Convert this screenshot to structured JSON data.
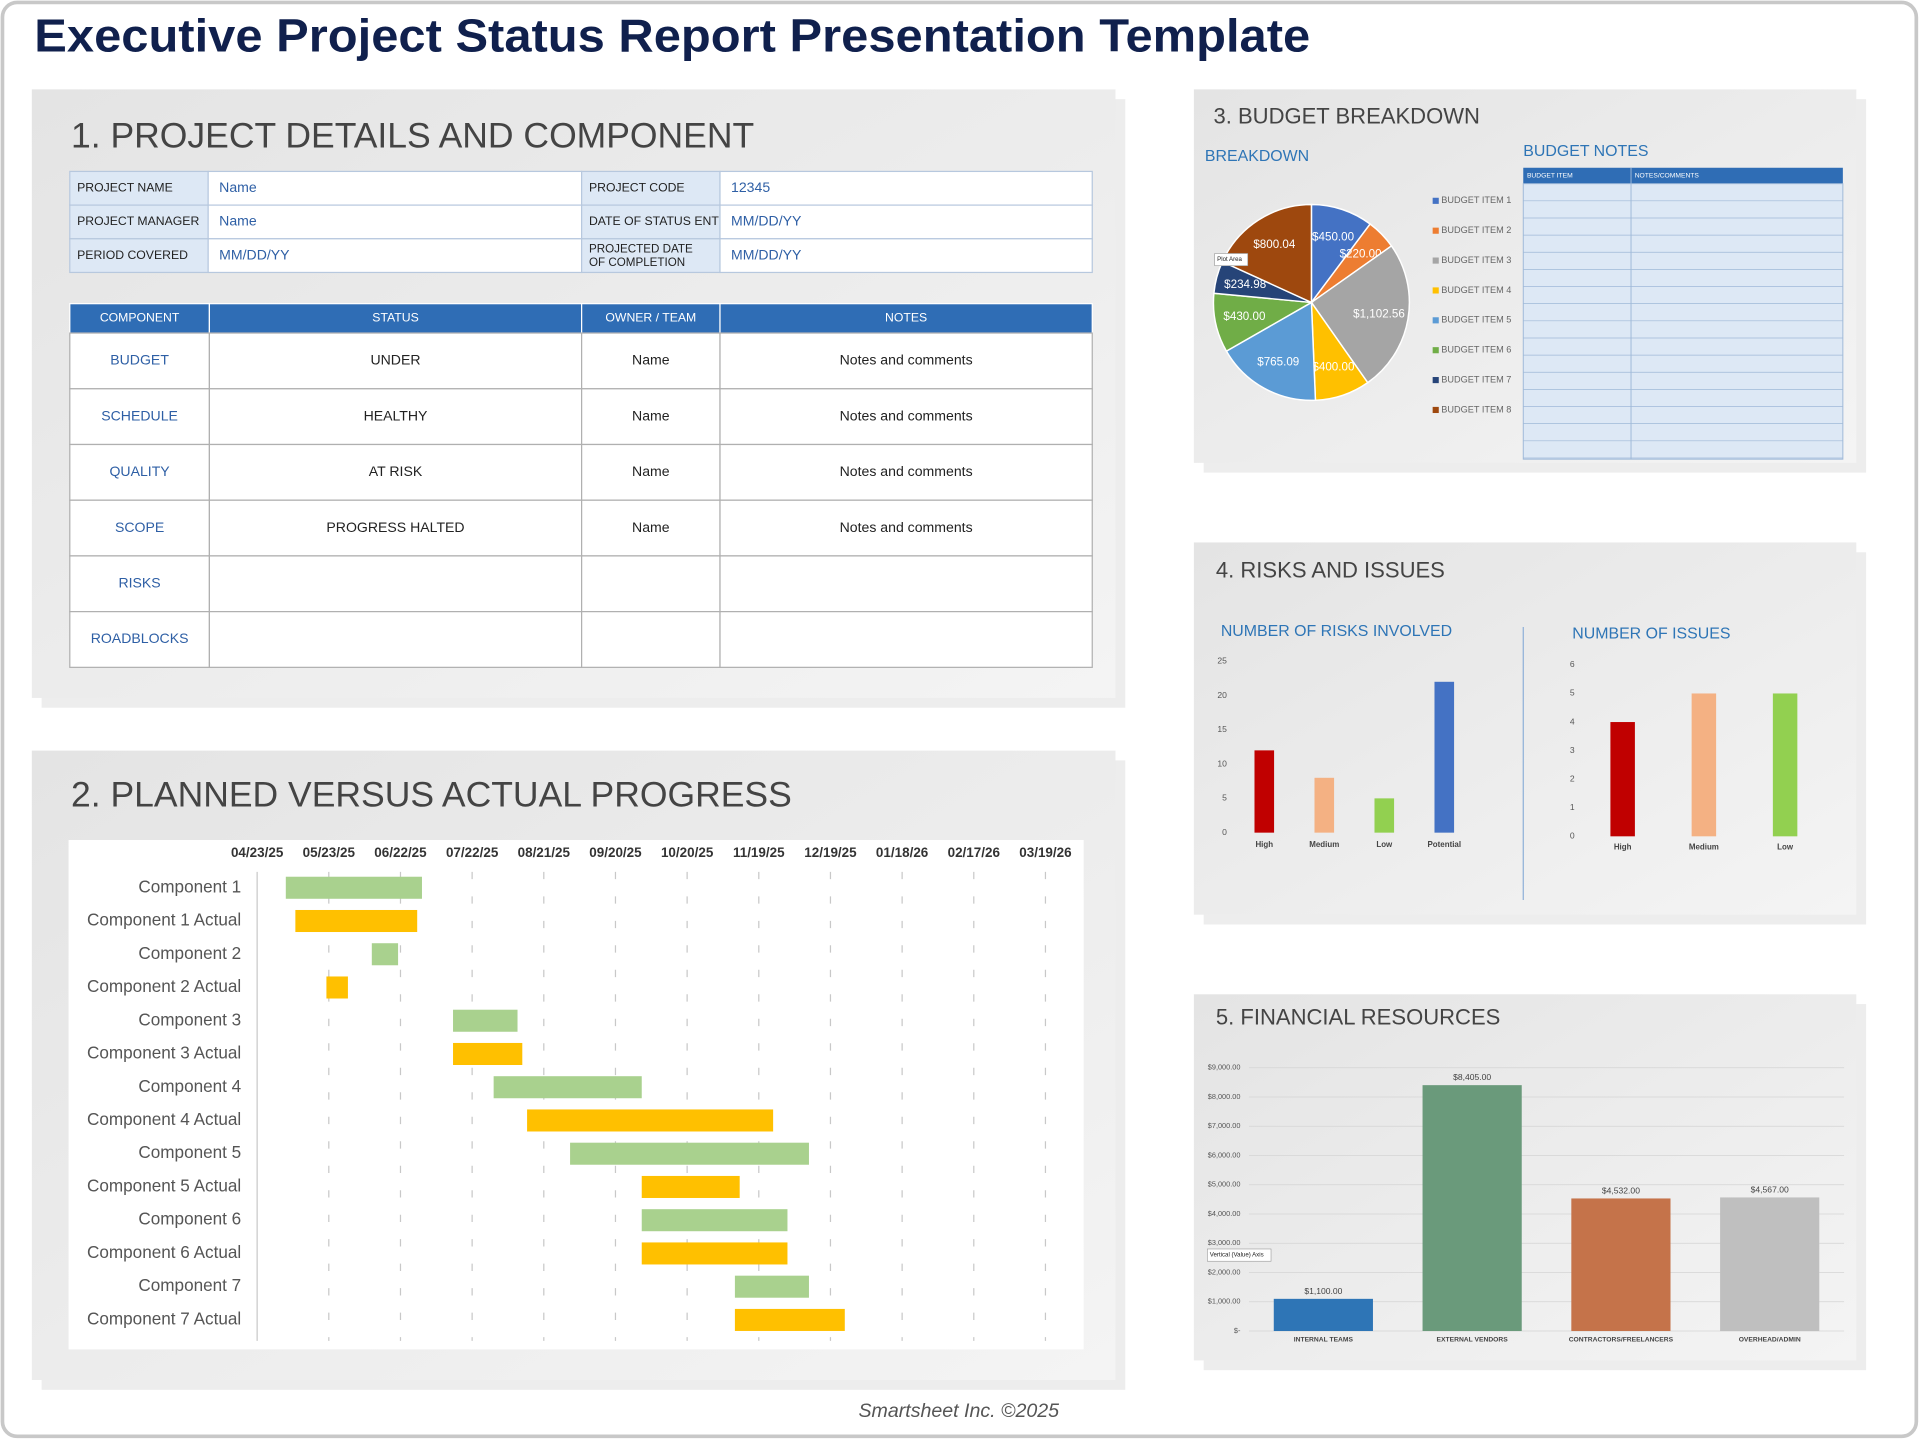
{
  "title": "Executive Project Status Report Presentation Template",
  "footer": "Smartsheet Inc. ©2025",
  "project": {
    "heading": "1. PROJECT DETAILS AND COMPONENT",
    "details": [
      [
        "PROJECT NAME",
        "Name",
        "PROJECT CODE",
        "12345"
      ],
      [
        "PROJECT MANAGER",
        "Name",
        "DATE OF STATUS ENTRY",
        "MM/DD/YY"
      ],
      [
        "PERIOD COVERED",
        "MM/DD/YY",
        "PROJECTED DATE OF COMPLETION",
        "MM/DD/YY"
      ]
    ],
    "components": {
      "header": [
        "COMPONENT",
        "STATUS",
        "OWNER / TEAM",
        "NOTES"
      ],
      "rows": [
        [
          "BUDGET",
          "UNDER",
          "Name",
          "Notes and comments"
        ],
        [
          "SCHEDULE",
          "HEALTHY",
          "Name",
          "Notes and comments"
        ],
        [
          "QUALITY",
          "AT RISK",
          "Name",
          "Notes and comments"
        ],
        [
          "SCOPE",
          "PROGRESS HALTED",
          "Name",
          "Notes and comments"
        ],
        [
          "RISKS"
        ],
        [
          "ROADBLOCKS"
        ]
      ]
    }
  },
  "budget_heading": "3. BUDGET BREAKDOWN",
  "budget_notes": {
    "title": "BUDGET NOTES",
    "header": [
      "BUDGET ITEM",
      "NOTES/COMMENTS"
    ]
  },
  "risks_heading": "4. RISKS AND ISSUES",
  "chart_data": [
    {
      "type": "gantt",
      "title": "2. PLANNED VERSUS ACTUAL PROGRESS",
      "categories": [
        "Component 1",
        "Component 1 Actual",
        "Component 2",
        "Component 2 Actual",
        "Component 3",
        "Component 3 Actual",
        "Component 4",
        "Component 4 Actual",
        "Component 5",
        "Component 5 Actual",
        "Component 6",
        "Component 6 Actual",
        "Component 7",
        "Component 7 Actual"
      ],
      "starts": [
        "2025-05-05",
        "2025-05-09",
        "2025-06-10",
        "2025-05-22",
        "2025-07-14",
        "2025-07-14",
        "2025-07-31",
        "2025-08-14",
        "2025-09-01",
        "2025-10-01",
        "2025-10-01",
        "2025-10-01",
        "2025-11-09",
        "2025-11-09"
      ],
      "ends": [
        "2025-07-01",
        "2025-06-29",
        "2025-06-21",
        "2025-05-31",
        "2025-08-10",
        "2025-08-12",
        "2025-10-01",
        "2025-11-25",
        "2025-12-10",
        "2025-11-11",
        "2025-12-01",
        "2025-12-01",
        "2025-12-10",
        "2025-12-25"
      ],
      "bar_colors": [
        "#a9d18e",
        "#ffc000"
      ],
      "xlim": [
        "2025-04-23",
        "2026-04-04"
      ],
      "xticks": [
        {
          "value": "2025-04-23",
          "label": "04/23/25"
        },
        {
          "value": "2025-05-23",
          "label": "05/23/25"
        },
        {
          "value": "2025-06-22",
          "label": "06/22/25"
        },
        {
          "value": "2025-07-22",
          "label": "07/22/25"
        },
        {
          "value": "2025-08-21",
          "label": "08/21/25"
        },
        {
          "value": "2025-09-20",
          "label": "09/20/25"
        },
        {
          "value": "2025-10-20",
          "label": "10/20/25"
        },
        {
          "value": "2025-11-19",
          "label": "11/19/25"
        },
        {
          "value": "2025-12-19",
          "label": "12/19/25"
        },
        {
          "value": "2026-01-18",
          "label": "01/18/26"
        },
        {
          "value": "2026-02-17",
          "label": "02/17/26"
        },
        {
          "value": "2026-03-19",
          "label": "03/19/26"
        }
      ],
      "grid": true
    },
    {
      "type": "pie",
      "title": "BREAKDOWN",
      "categories": [
        "BUDGET ITEM 1",
        "BUDGET ITEM 2",
        "BUDGET ITEM 3",
        "BUDGET ITEM 4",
        "BUDGET ITEM 5",
        "BUDGET ITEM 6",
        "BUDGET ITEM 7",
        "BUDGET ITEM 8"
      ],
      "values": [
        450.0,
        220.0,
        1102.56,
        400.0,
        765.09,
        430.0,
        234.98,
        800.04
      ],
      "value_labels": [
        "$450.00",
        "$220.00",
        "$1,102.56",
        "$400.00",
        "$765.09",
        "$430.00",
        "$234.98",
        "$800.04"
      ],
      "colors": [
        "#4472c4",
        "#ed7d31",
        "#a5a5a5",
        "#ffc000",
        "#5b9bd5",
        "#70ad47",
        "#264478",
        "#9e480e"
      ],
      "annotations": [
        "Plot Area"
      ],
      "legend": "right"
    },
    {
      "type": "bar",
      "title": "NUMBER OF RISKS INVOLVED",
      "categories": [
        "High",
        "Medium",
        "Low",
        "Potential"
      ],
      "values": [
        12,
        8,
        5,
        22
      ],
      "colors": [
        "#c00000",
        "#f4b183",
        "#92d050",
        "#4472c4"
      ],
      "ylim": [
        0,
        25
      ],
      "yticks": [
        0,
        5,
        10,
        15,
        20,
        25
      ],
      "grid": false
    },
    {
      "type": "bar",
      "title": "NUMBER OF ISSUES",
      "categories": [
        "High",
        "Medium",
        "Low"
      ],
      "values": [
        4,
        5,
        5
      ],
      "colors": [
        "#c00000",
        "#f4b183",
        "#92d050"
      ],
      "ylim": [
        0,
        6
      ],
      "yticks": [
        0,
        1,
        2,
        3,
        4,
        5,
        6
      ],
      "grid": false
    },
    {
      "type": "bar",
      "title": "5. FINANCIAL RESOURCES",
      "categories": [
        "INTERNAL TEAMS",
        "EXTERNAL VENDORS",
        "CONTRACTORS/FREELANCERS",
        "OVERHEAD/ADMIN"
      ],
      "values": [
        1100,
        8405,
        4532,
        4567
      ],
      "value_labels": [
        "$1,100.00",
        "$8,405.00",
        "$4,532.00",
        "$4,567.00"
      ],
      "colors": [
        "#2e75b6",
        "#6a9a7b",
        "#c5734a",
        "#bfbfbf"
      ],
      "ylim": [
        0,
        9000
      ],
      "yticks": [
        {
          "value": 0,
          "label": "$-"
        },
        {
          "value": 1000,
          "label": "$1,000.00"
        },
        {
          "value": 2000,
          "label": "$2,000.00"
        },
        {
          "value": 3000,
          "label": "$3,000.00"
        },
        {
          "value": 4000,
          "label": "$4,000.00"
        },
        {
          "value": 5000,
          "label": "$5,000.00"
        },
        {
          "value": 6000,
          "label": "$6,000.00"
        },
        {
          "value": 7000,
          "label": "$7,000.00"
        },
        {
          "value": 8000,
          "label": "$8,000.00"
        },
        {
          "value": 9000,
          "label": "$9,000.00"
        }
      ],
      "annotations": [
        "Vertical (Value) Axis"
      ],
      "grid": true
    }
  ]
}
